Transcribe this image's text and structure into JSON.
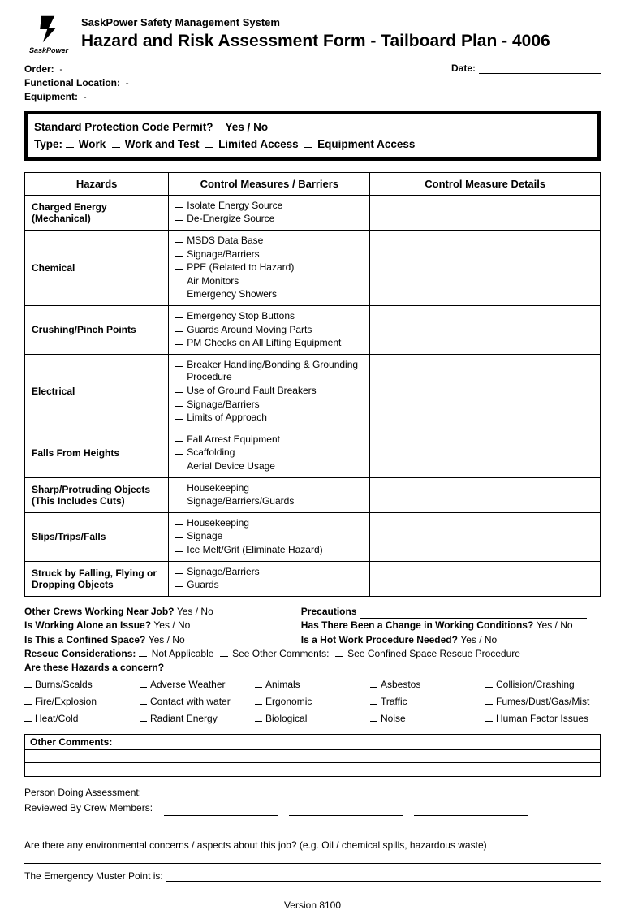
{
  "logo": {
    "brand_top": "Sask",
    "brand_bottom": "Power"
  },
  "header": {
    "system": "SaskPower Safety Management System",
    "title": "Hazard and Risk Assessment Form - Tailboard Plan - 4006"
  },
  "meta": {
    "order_label": "Order:",
    "order_val": "-",
    "funcloc_label": "Functional Location:",
    "funcloc_val": "-",
    "equip_label": "Equipment:",
    "equip_val": "-",
    "date_label": "Date:"
  },
  "permit": {
    "line1a": "Standard Protection Code Permit?",
    "line1b": "Yes / No",
    "line2_label": "Type:",
    "types": [
      "Work",
      "Work and Test",
      "Limited Access",
      "Equipment Access"
    ]
  },
  "table": {
    "h1": "Hazards",
    "h2": "Control Measures / Barriers",
    "h3": "Control Measure Details",
    "rows": [
      {
        "hazard": "Charged Energy (Mechanical)",
        "measures": [
          "Isolate Energy Source",
          "De-Energize Source"
        ]
      },
      {
        "hazard": "Chemical",
        "measures": [
          "MSDS Data Base",
          "Signage/Barriers",
          "PPE (Related to Hazard)",
          "Air Monitors",
          "Emergency Showers"
        ]
      },
      {
        "hazard": "Crushing/Pinch Points",
        "measures": [
          "Emergency Stop Buttons",
          "Guards Around Moving Parts",
          "PM Checks on All Lifting Equipment"
        ]
      },
      {
        "hazard": "Electrical",
        "measures": [
          "Breaker Handling/Bonding & Grounding Procedure",
          "Use of Ground Fault Breakers",
          "Signage/Barriers",
          "Limits of Approach"
        ]
      },
      {
        "hazard": "Falls From Heights",
        "measures": [
          "Fall Arrest Equipment",
          "Scaffolding",
          "Aerial Device Usage"
        ]
      },
      {
        "hazard": "Sharp/Protruding Objects (This Includes Cuts)",
        "measures": [
          "Housekeeping",
          "Signage/Barriers/Guards"
        ]
      },
      {
        "hazard": "Slips/Trips/Falls",
        "measures": [
          "Housekeeping",
          "Signage",
          "Ice Melt/Grit (Eliminate Hazard)"
        ]
      },
      {
        "hazard": "Struck by Falling, Flying or Dropping Objects",
        "measures": [
          "Signage/Barriers",
          "Guards"
        ]
      }
    ]
  },
  "questions": {
    "q1": "Other Crews Working Near Job?",
    "q1a": "Yes / No",
    "q1r": "Precautions",
    "q2": "Is Working Alone an Issue?",
    "q2a": "Yes / No",
    "q2r": "Has There Been a Change in Working Conditions?",
    "q2ra": "Yes / No",
    "q3": "Is This a Confined Space?",
    "q3a": "Yes / No",
    "q3r": "Is a Hot Work Procedure Needed?",
    "q3ra": "Yes / No",
    "rescue_label": "Rescue Considerations:",
    "rescue_opts": [
      "Not Applicable",
      "See Other Comments:",
      "See Confined Space Rescue Procedure"
    ],
    "concern_label": "Are these Hazards a concern?",
    "concerns": [
      [
        "Burns/Scalds",
        "Adverse Weather",
        "Animals",
        "Asbestos",
        "Collision/Crashing"
      ],
      [
        "Fire/Explosion",
        "Contact with water",
        "Ergonomic",
        "Traffic",
        "Fumes/Dust/Gas/Mist"
      ],
      [
        "Heat/Cold",
        "Radiant Energy",
        "Biological",
        "Noise",
        "Human Factor Issues"
      ]
    ]
  },
  "comments_label": "Other Comments:",
  "sign": {
    "person": "Person Doing Assessment:",
    "reviewed": "Reviewed By Crew Members:"
  },
  "env_q": "Are there any environmental concerns / aspects about this job? (e.g. Oil / chemical spills, hazardous waste)",
  "muster": "The Emergency Muster Point is:",
  "version": "Version 8100"
}
